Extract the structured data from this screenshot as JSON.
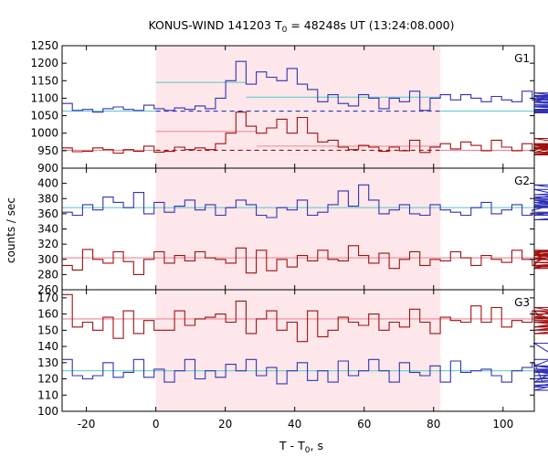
{
  "chart_data": {
    "type": "line",
    "title": "KONUS-WIND 141203 T",
    "title_sub": "0",
    "title_rest": " = 48248s UT (13:24:08.000)",
    "xlabel": "T - T",
    "xlabel_sub": "0",
    "xlabel_rest": ", s",
    "ylabel": "counts / sec",
    "xlim": [
      -27,
      109
    ],
    "xticks": [
      -20,
      0,
      20,
      40,
      60,
      80,
      100
    ],
    "xtick_labels": [
      "-20",
      "0",
      "20",
      "40",
      "60",
      "80",
      "100"
    ],
    "shaded_interval": [
      0,
      82
    ],
    "colors": {
      "blue": "#3232b4",
      "red": "#a01010",
      "cyan": "#66cccc",
      "pink": "#ee8899",
      "shade": "#fde7ea"
    },
    "panels": [
      {
        "name": "G1",
        "ylim": [
          900,
          1250
        ],
        "yticks": [
          900,
          950,
          1000,
          1050,
          1100,
          1150,
          1200,
          1250
        ],
        "ytick_labels": [
          "900",
          "950",
          "1000",
          "1050",
          "1100",
          "1150",
          "1200",
          "1250"
        ],
        "bins": {
          "start": -27,
          "width": 2.944
        },
        "series": [
          {
            "color": "blue",
            "values": [
              1085,
              1065,
              1068,
              1060,
              1070,
              1075,
              1068,
              1065,
              1080,
              1070,
              1065,
              1072,
              1068,
              1078,
              1070,
              1100,
              1150,
              1205,
              1140,
              1175,
              1160,
              1150,
              1185,
              1140,
              1125,
              1090,
              1110,
              1085,
              1078,
              1110,
              1100,
              1070,
              1100,
              1090,
              1120,
              1065,
              1100,
              1110,
              1095,
              1110,
              1100,
              1090,
              1105,
              1095,
              1090,
              1120,
              1095,
              1105,
              1090,
              1108,
              1098,
              1115,
              1095,
              1108,
              1068,
              1075,
              1062,
              1068,
              1078,
              1058,
              1075,
              1065,
              1078,
              1088,
              1060,
              1082
            ]
          },
          {
            "color": "red",
            "values": [
              958,
              947,
              948,
              958,
              953,
              943,
              953,
              948,
              963,
              946,
              948,
              960,
              953,
              958,
              953,
              970,
              1000,
              1060,
              1020,
              1000,
              1015,
              1040,
              1000,
              1045,
              1000,
              975,
              980,
              960,
              953,
              965,
              960,
              948,
              960,
              950,
              980,
              945,
              960,
              970,
              955,
              975,
              965,
              950,
              980,
              960,
              950,
              970,
              950,
              960,
              945,
              965,
              958,
              985,
              958,
              965,
              945,
              945,
              938,
              940,
              955,
              945,
              955,
              970,
              960,
              968,
              940,
              955
            ]
          }
        ],
        "fits": [
          {
            "color": "cyan",
            "style": "solid",
            "points": [
              [
                -27,
                1063
              ],
              [
                0,
                1063
              ]
            ]
          },
          {
            "color": "cyan",
            "style": "solid",
            "points": [
              [
                0,
                1145
              ],
              [
                26,
                1145
              ]
            ]
          },
          {
            "color": "cyan",
            "style": "solid",
            "points": [
              [
                26,
                1103
              ],
              [
                82,
                1103
              ]
            ]
          },
          {
            "color": "cyan",
            "style": "solid",
            "points": [
              [
                82,
                1063
              ],
              [
                109,
                1063
              ]
            ]
          },
          {
            "color": "blue",
            "style": "dashed",
            "points": [
              [
                0,
                1063
              ],
              [
                82,
                1063
              ]
            ]
          },
          {
            "color": "pink",
            "style": "solid",
            "points": [
              [
                -27,
                951
              ],
              [
                0,
                951
              ]
            ]
          },
          {
            "color": "pink",
            "style": "solid",
            "points": [
              [
                0,
                1005
              ],
              [
                29,
                1005
              ]
            ]
          },
          {
            "color": "pink",
            "style": "solid",
            "points": [
              [
                29,
                963
              ],
              [
                82,
                963
              ]
            ]
          },
          {
            "color": "pink",
            "style": "solid",
            "points": [
              [
                82,
                951
              ],
              [
                109,
                951
              ]
            ]
          },
          {
            "color": "red",
            "style": "dashed",
            "points": [
              [
                0,
                951
              ],
              [
                82,
                951
              ]
            ]
          }
        ]
      },
      {
        "name": "G2",
        "ylim": [
          260,
          420
        ],
        "yticks": [
          260,
          280,
          300,
          320,
          340,
          360,
          380,
          400
        ],
        "ytick_labels": [
          "260",
          "280",
          "300",
          "320",
          "340",
          "360",
          "380",
          "400"
        ],
        "bins": {
          "start": -27,
          "width": 2.944
        },
        "series": [
          {
            "color": "blue",
            "values": [
              362,
              358,
              372,
              365,
              382,
              375,
              368,
              388,
              360,
              375,
              362,
              370,
              378,
              365,
              372,
              358,
              368,
              378,
              372,
              358,
              355,
              368,
              365,
              378,
              358,
              362,
              372,
              390,
              370,
              398,
              378,
              360,
              365,
              372,
              360,
              358,
              372,
              365,
              362,
              358,
              368,
              375,
              360,
              365,
              372,
              358,
              365,
              368,
              378,
              370,
              380,
              392,
              375,
              362,
              358,
              372,
              370,
              360,
              378,
              382,
              385,
              398,
              368,
              378,
              352,
              372
            ]
          },
          {
            "color": "red",
            "values": [
              292,
              286,
              313,
              300,
              295,
              310,
              297,
              280,
              300,
              310,
              295,
              305,
              298,
              310,
              302,
              300,
              295,
              315,
              282,
              312,
              285,
              300,
              290,
              305,
              298,
              312,
              300,
              298,
              318,
              305,
              295,
              308,
              288,
              300,
              310,
              292,
              300,
              298,
              310,
              302,
              292,
              305,
              300,
              296,
              312,
              300,
              292,
              306,
              296,
              310,
              300,
              308,
              290,
              302,
              288,
              312,
              296,
              290,
              306,
              312,
              300,
              296,
              292,
              305,
              290,
              300
            ]
          }
        ],
        "fits": [
          {
            "color": "cyan",
            "style": "solid",
            "points": [
              [
                -27,
                368
              ],
              [
                109,
                368
              ]
            ]
          },
          {
            "color": "pink",
            "style": "solid",
            "points": [
              [
                -27,
                302
              ],
              [
                109,
                302
              ]
            ]
          }
        ]
      },
      {
        "name": "G3",
        "ylim": [
          100,
          175
        ],
        "yticks": [
          100,
          110,
          120,
          130,
          140,
          150,
          160,
          170
        ],
        "ytick_labels": [
          "100",
          "110",
          "120",
          "130",
          "140",
          "150",
          "160",
          "170"
        ],
        "bins": {
          "start": -27,
          "width": 2.944
        },
        "series": [
          {
            "color": "blue",
            "values": [
              132,
              122,
              120,
              122,
              130,
              121,
              124,
              132,
              121,
              126,
              118,
              125,
              132,
              120,
              125,
              121,
              129,
              125,
              132,
              122,
              127,
              117,
              125,
              130,
              119,
              125,
              118,
              131,
              122,
              125,
              132,
              125,
              118,
              130,
              124,
              122,
              128,
              118,
              131,
              124,
              125,
              126,
              122,
              118,
              125,
              127,
              130,
              118,
              124,
              126,
              124,
              128,
              142,
              115,
              125,
              113,
              128,
              122,
              125,
              120,
              128,
              116,
              122,
              128,
              118,
              132
            ]
          },
          {
            "color": "red",
            "values": [
              172,
              152,
              155,
              150,
              158,
              145,
              162,
              148,
              156,
              150,
              150,
              162,
              153,
              157,
              158,
              160,
              155,
              168,
              148,
              157,
              162,
              150,
              155,
              143,
              162,
              146,
              150,
              158,
              155,
              153,
              160,
              150,
              155,
              152,
              163,
              155,
              148,
              158,
              156,
              155,
              165,
              155,
              164,
              152,
              156,
              155,
              162,
              157,
              158,
              164,
              160,
              152,
              158,
              152,
              155,
              150,
              158,
              155,
              148,
              156,
              152,
              158,
              160,
              162,
              150,
              155
            ]
          }
        ],
        "fits": [
          {
            "color": "pink",
            "style": "solid",
            "points": [
              [
                -27,
                157
              ],
              [
                109,
                157
              ]
            ]
          },
          {
            "color": "cyan",
            "style": "solid",
            "points": [
              [
                -27,
                125
              ],
              [
                109,
                125
              ]
            ]
          }
        ]
      }
    ]
  }
}
